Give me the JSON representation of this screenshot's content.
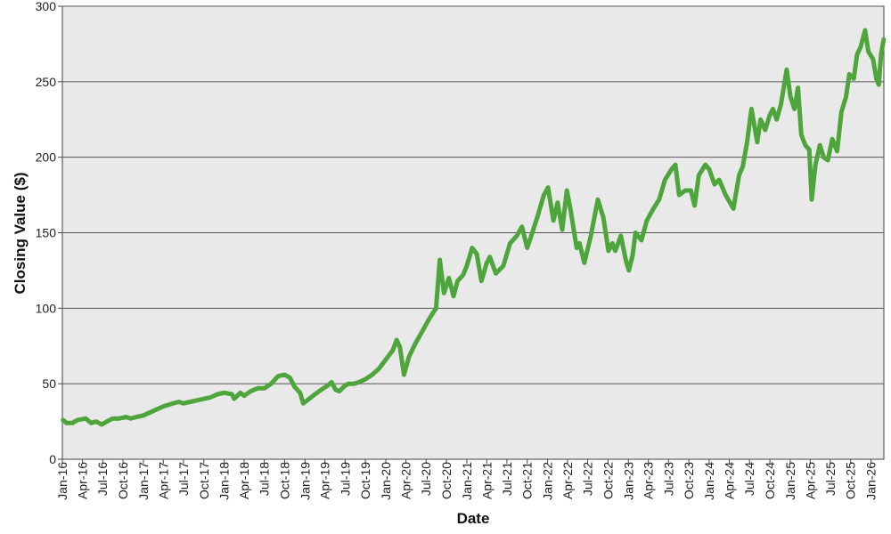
{
  "chart_data": {
    "type": "line",
    "title": "",
    "xlabel": "Date",
    "ylabel": "Closing Value ($)",
    "ylim": [
      0,
      300
    ],
    "y_ticks": [
      0,
      50,
      100,
      150,
      200,
      250,
      300
    ],
    "x_range": [
      "2016-01-01",
      "2026-02-28"
    ],
    "x_ticks": [
      {
        "date": "2016-01-01",
        "label": "Jan-16"
      },
      {
        "date": "2016-04-01",
        "label": "Apr-16"
      },
      {
        "date": "2016-07-01",
        "label": "Jul-16"
      },
      {
        "date": "2016-10-01",
        "label": "Oct-16"
      },
      {
        "date": "2017-01-01",
        "label": "Jan-17"
      },
      {
        "date": "2017-04-01",
        "label": "Apr-17"
      },
      {
        "date": "2017-07-01",
        "label": "Jul-17"
      },
      {
        "date": "2017-10-01",
        "label": "Oct-17"
      },
      {
        "date": "2018-01-01",
        "label": "Jan-18"
      },
      {
        "date": "2018-04-01",
        "label": "Apr-18"
      },
      {
        "date": "2018-07-01",
        "label": "Jul-18"
      },
      {
        "date": "2018-10-01",
        "label": "Oct-18"
      },
      {
        "date": "2019-01-01",
        "label": "Jan-19"
      },
      {
        "date": "2019-04-01",
        "label": "Apr-19"
      },
      {
        "date": "2019-07-01",
        "label": "Jul-19"
      },
      {
        "date": "2019-10-01",
        "label": "Oct-19"
      },
      {
        "date": "2020-01-01",
        "label": "Jan-20"
      },
      {
        "date": "2020-04-01",
        "label": "Apr-20"
      },
      {
        "date": "2020-07-01",
        "label": "Jul-20"
      },
      {
        "date": "2020-10-01",
        "label": "Oct-20"
      },
      {
        "date": "2021-01-01",
        "label": "Jan-21"
      },
      {
        "date": "2021-04-01",
        "label": "Apr-21"
      },
      {
        "date": "2021-07-01",
        "label": "Jul-21"
      },
      {
        "date": "2021-10-01",
        "label": "Oct-21"
      },
      {
        "date": "2022-01-01",
        "label": "Jan-22"
      },
      {
        "date": "2022-04-01",
        "label": "Apr-22"
      },
      {
        "date": "2022-07-01",
        "label": "Jul-22"
      },
      {
        "date": "2022-10-01",
        "label": "Oct-22"
      },
      {
        "date": "2023-01-01",
        "label": "Jan-23"
      },
      {
        "date": "2023-04-01",
        "label": "Apr-23"
      },
      {
        "date": "2023-07-01",
        "label": "Jul-23"
      },
      {
        "date": "2023-10-01",
        "label": "Oct-23"
      },
      {
        "date": "2024-01-01",
        "label": "Jan-24"
      },
      {
        "date": "2024-04-01",
        "label": "Apr-24"
      },
      {
        "date": "2024-07-01",
        "label": "Jul-24"
      },
      {
        "date": "2024-10-01",
        "label": "Oct-24"
      },
      {
        "date": "2025-01-01",
        "label": "Jan-25"
      },
      {
        "date": "2025-04-01",
        "label": "Apr-25"
      },
      {
        "date": "2025-07-01",
        "label": "Jul-25"
      },
      {
        "date": "2025-10-01",
        "label": "Oct-25"
      },
      {
        "date": "2026-01-01",
        "label": "Jan-26"
      }
    ],
    "grid": true,
    "grid_axis": "y",
    "legend": "none",
    "colors": {
      "line": "#4ea53b",
      "plot_background": "#e9e9e9",
      "grid": "#555555",
      "axis": "#444444"
    },
    "series": [
      {
        "points": [
          [
            "2016-01-04",
            26
          ],
          [
            "2016-01-20",
            24
          ],
          [
            "2016-02-15",
            24
          ],
          [
            "2016-03-10",
            26
          ],
          [
            "2016-04-15",
            27
          ],
          [
            "2016-05-10",
            24
          ],
          [
            "2016-06-01",
            25
          ],
          [
            "2016-06-27",
            23
          ],
          [
            "2016-07-20",
            25
          ],
          [
            "2016-08-15",
            27
          ],
          [
            "2016-09-15",
            27
          ],
          [
            "2016-10-15",
            28
          ],
          [
            "2016-11-05",
            27
          ],
          [
            "2016-12-01",
            28
          ],
          [
            "2017-01-01",
            29
          ],
          [
            "2017-02-15",
            32
          ],
          [
            "2017-04-01",
            35
          ],
          [
            "2017-05-15",
            37
          ],
          [
            "2017-06-10",
            38
          ],
          [
            "2017-07-01",
            37
          ],
          [
            "2017-08-01",
            38
          ],
          [
            "2017-09-01",
            39
          ],
          [
            "2017-10-01",
            40
          ],
          [
            "2017-11-01",
            41
          ],
          [
            "2017-12-01",
            43
          ],
          [
            "2018-01-01",
            44
          ],
          [
            "2018-02-05",
            43
          ],
          [
            "2018-02-15",
            40
          ],
          [
            "2018-03-15",
            44
          ],
          [
            "2018-04-01",
            42
          ],
          [
            "2018-05-01",
            45
          ],
          [
            "2018-06-01",
            47
          ],
          [
            "2018-07-01",
            47
          ],
          [
            "2018-08-01",
            50
          ],
          [
            "2018-09-01",
            55
          ],
          [
            "2018-10-01",
            56
          ],
          [
            "2018-10-25",
            54
          ],
          [
            "2018-11-15",
            48
          ],
          [
            "2018-12-10",
            44
          ],
          [
            "2018-12-24",
            37
          ],
          [
            "2019-01-20",
            40
          ],
          [
            "2019-02-15",
            43
          ],
          [
            "2019-03-15",
            46
          ],
          [
            "2019-04-15",
            49
          ],
          [
            "2019-05-01",
            51
          ],
          [
            "2019-05-20",
            46
          ],
          [
            "2019-06-05",
            45
          ],
          [
            "2019-06-25",
            48
          ],
          [
            "2019-07-15",
            50
          ],
          [
            "2019-08-10",
            50
          ],
          [
            "2019-09-01",
            51
          ],
          [
            "2019-10-01",
            53
          ],
          [
            "2019-11-01",
            56
          ],
          [
            "2019-12-01",
            60
          ],
          [
            "2020-01-01",
            66
          ],
          [
            "2020-02-01",
            72
          ],
          [
            "2020-02-19",
            79
          ],
          [
            "2020-03-05",
            74
          ],
          [
            "2020-03-23",
            56
          ],
          [
            "2020-04-15",
            68
          ],
          [
            "2020-05-15",
            77
          ],
          [
            "2020-06-15",
            85
          ],
          [
            "2020-07-15",
            93
          ],
          [
            "2020-08-15",
            100
          ],
          [
            "2020-09-01",
            132
          ],
          [
            "2020-09-20",
            110
          ],
          [
            "2020-10-12",
            120
          ],
          [
            "2020-11-02",
            108
          ],
          [
            "2020-11-20",
            118
          ],
          [
            "2020-12-15",
            122
          ],
          [
            "2021-01-01",
            128
          ],
          [
            "2021-01-25",
            140
          ],
          [
            "2021-02-15",
            136
          ],
          [
            "2021-03-08",
            118
          ],
          [
            "2021-04-01",
            130
          ],
          [
            "2021-04-15",
            134
          ],
          [
            "2021-05-12",
            123
          ],
          [
            "2021-06-15",
            128
          ],
          [
            "2021-07-15",
            143
          ],
          [
            "2021-08-15",
            148
          ],
          [
            "2021-09-07",
            154
          ],
          [
            "2021-10-01",
            140
          ],
          [
            "2021-10-15",
            146
          ],
          [
            "2021-11-15",
            160
          ],
          [
            "2021-12-15",
            175
          ],
          [
            "2022-01-03",
            180
          ],
          [
            "2022-01-27",
            158
          ],
          [
            "2022-02-15",
            170
          ],
          [
            "2022-03-08",
            152
          ],
          [
            "2022-03-29",
            178
          ],
          [
            "2022-04-15",
            165
          ],
          [
            "2022-05-12",
            140
          ],
          [
            "2022-05-25",
            143
          ],
          [
            "2022-06-16",
            130
          ],
          [
            "2022-07-15",
            148
          ],
          [
            "2022-08-16",
            172
          ],
          [
            "2022-09-10",
            160
          ],
          [
            "2022-10-03",
            138
          ],
          [
            "2022-10-20",
            143
          ],
          [
            "2022-11-03",
            138
          ],
          [
            "2022-11-28",
            148
          ],
          [
            "2022-12-20",
            132
          ],
          [
            "2023-01-03",
            125
          ],
          [
            "2023-01-20",
            135
          ],
          [
            "2023-02-02",
            150
          ],
          [
            "2023-03-01",
            145
          ],
          [
            "2023-03-25",
            158
          ],
          [
            "2023-04-20",
            165
          ],
          [
            "2023-05-20",
            172
          ],
          [
            "2023-06-15",
            185
          ],
          [
            "2023-07-15",
            192
          ],
          [
            "2023-08-01",
            195
          ],
          [
            "2023-08-18",
            175
          ],
          [
            "2023-09-15",
            178
          ],
          [
            "2023-10-10",
            178
          ],
          [
            "2023-10-27",
            168
          ],
          [
            "2023-11-15",
            188
          ],
          [
            "2023-12-15",
            195
          ],
          [
            "2024-01-01",
            192
          ],
          [
            "2024-01-25",
            182
          ],
          [
            "2024-02-15",
            185
          ],
          [
            "2024-03-15",
            175
          ],
          [
            "2024-04-19",
            166
          ],
          [
            "2024-05-15",
            188
          ],
          [
            "2024-06-01",
            194
          ],
          [
            "2024-06-20",
            210
          ],
          [
            "2024-07-10",
            232
          ],
          [
            "2024-08-05",
            210
          ],
          [
            "2024-08-20",
            225
          ],
          [
            "2024-09-10",
            218
          ],
          [
            "2024-10-01",
            228
          ],
          [
            "2024-10-15",
            232
          ],
          [
            "2024-11-01",
            225
          ],
          [
            "2024-11-20",
            235
          ],
          [
            "2024-12-16",
            258
          ],
          [
            "2025-01-02",
            240
          ],
          [
            "2025-01-20",
            232
          ],
          [
            "2025-02-05",
            246
          ],
          [
            "2025-02-20",
            215
          ],
          [
            "2025-03-10",
            208
          ],
          [
            "2025-03-28",
            205
          ],
          [
            "2025-04-08",
            172
          ],
          [
            "2025-04-25",
            195
          ],
          [
            "2025-05-15",
            208
          ],
          [
            "2025-06-01",
            200
          ],
          [
            "2025-06-20",
            198
          ],
          [
            "2025-07-10",
            212
          ],
          [
            "2025-08-01",
            204
          ],
          [
            "2025-08-20",
            230
          ],
          [
            "2025-09-10",
            240
          ],
          [
            "2025-09-25",
            255
          ],
          [
            "2025-10-15",
            252
          ],
          [
            "2025-10-30",
            268
          ],
          [
            "2025-11-15",
            273
          ],
          [
            "2025-12-05",
            284
          ],
          [
            "2025-12-20",
            270
          ],
          [
            "2026-01-10",
            265
          ],
          [
            "2026-01-25",
            252
          ],
          [
            "2026-02-05",
            248
          ],
          [
            "2026-02-15",
            268
          ],
          [
            "2026-02-27",
            278
          ]
        ]
      }
    ]
  }
}
